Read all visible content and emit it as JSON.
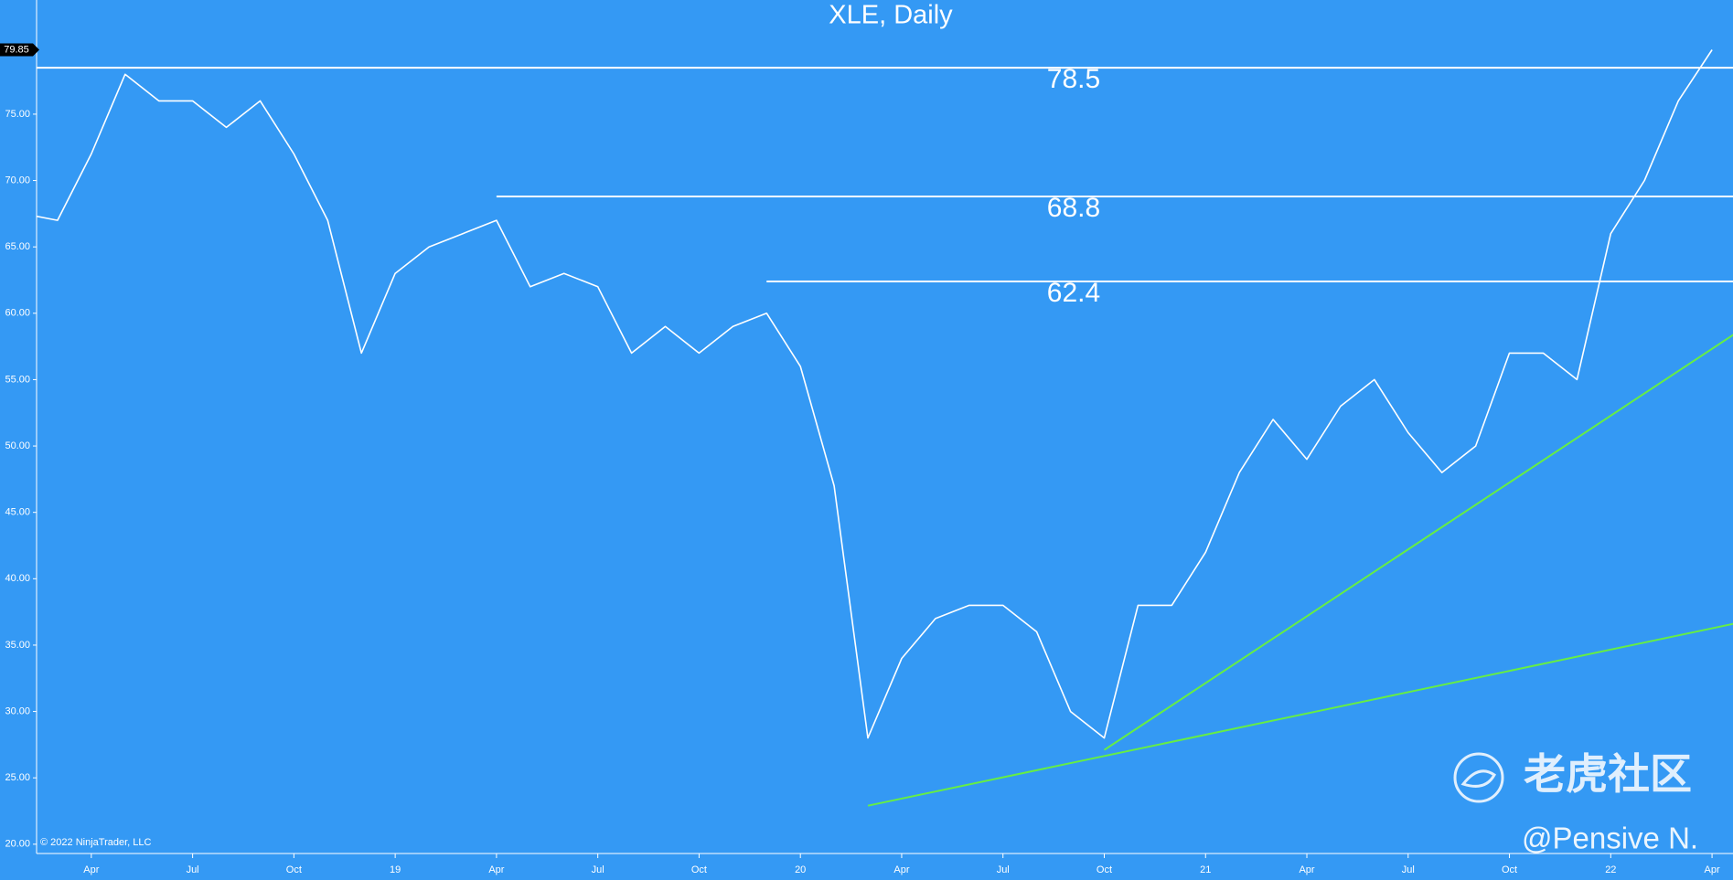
{
  "chart_data": {
    "type": "line",
    "title": "XLE, Daily",
    "x": [
      "2018-02",
      "2018-03",
      "2018-04",
      "2018-05",
      "2018-06",
      "2018-07",
      "2018-08",
      "2018-09",
      "2018-10",
      "2018-11",
      "2018-12",
      "2019-01",
      "2019-02",
      "2019-03",
      "2019-04",
      "2019-05",
      "2019-06",
      "2019-07",
      "2019-08",
      "2019-09",
      "2019-10",
      "2019-11",
      "2019-12",
      "2020-01",
      "2020-02",
      "2020-03",
      "2020-04",
      "2020-05",
      "2020-06",
      "2020-07",
      "2020-08",
      "2020-09",
      "2020-10",
      "2020-11",
      "2020-12",
      "2021-01",
      "2021-02",
      "2021-03",
      "2021-04",
      "2021-05",
      "2021-06",
      "2021-07",
      "2021-08",
      "2021-09",
      "2021-10",
      "2021-11",
      "2021-12",
      "2022-01",
      "2022-02",
      "2022-03",
      "2022-04"
    ],
    "series": [
      {
        "name": "XLE",
        "color": "#ffffff",
        "values": [
          67.5,
          67,
          72,
          78,
          76,
          76,
          74,
          76,
          72,
          67,
          57,
          63,
          65,
          66,
          67,
          62,
          63,
          62,
          57,
          59,
          57,
          59,
          60,
          56,
          47,
          28,
          34,
          37,
          38,
          38,
          36,
          30,
          28,
          38,
          38,
          42,
          48,
          52,
          49,
          53,
          55,
          51,
          48,
          50,
          57,
          57,
          55,
          66,
          70,
          76,
          79.85
        ]
      }
    ],
    "last_price": 79.85,
    "levels": [
      {
        "value": 78.5,
        "start": "2018-02"
      },
      {
        "value": 68.8,
        "start": "2019-04"
      },
      {
        "value": 62.4,
        "start": "2019-12"
      }
    ],
    "trend_lines": [
      {
        "x": [
          "2020-03",
          "2022-05"
        ],
        "values": [
          22.9,
          36.8
        ],
        "color": "#66ee44"
      },
      {
        "x": [
          "2020-10",
          "2022-05"
        ],
        "values": [
          27.1,
          59
        ],
        "color": "#66ee44"
      }
    ],
    "xlim": [
      "2018-02",
      "2022-05"
    ],
    "ylim": [
      19.3,
      83.6
    ],
    "xticks": [
      {
        "value": "2018-04",
        "label": "Apr"
      },
      {
        "value": "2018-07",
        "label": "Jul"
      },
      {
        "value": "2018-10",
        "label": "Oct"
      },
      {
        "value": "2019-01",
        "label": "19"
      },
      {
        "value": "2019-04",
        "label": "Apr"
      },
      {
        "value": "2019-07",
        "label": "Jul"
      },
      {
        "value": "2019-10",
        "label": "Oct"
      },
      {
        "value": "2020-01",
        "label": "20"
      },
      {
        "value": "2020-04",
        "label": "Apr"
      },
      {
        "value": "2020-07",
        "label": "Jul"
      },
      {
        "value": "2020-10",
        "label": "Oct"
      },
      {
        "value": "2021-01",
        "label": "21"
      },
      {
        "value": "2021-04",
        "label": "Apr"
      },
      {
        "value": "2021-07",
        "label": "Jul"
      },
      {
        "value": "2021-10",
        "label": "Oct"
      },
      {
        "value": "2022-01",
        "label": "22"
      },
      {
        "value": "2022-04",
        "label": "Apr"
      }
    ],
    "yticks": [
      {
        "value": 20,
        "label": "20.00"
      },
      {
        "value": 25,
        "label": "25.00"
      },
      {
        "value": 30,
        "label": "30.00"
      },
      {
        "value": 35,
        "label": "35.00"
      },
      {
        "value": 40,
        "label": "40.00"
      },
      {
        "value": 45,
        "label": "45.00"
      },
      {
        "value": 50,
        "label": "50.00"
      },
      {
        "value": 55,
        "label": "55.00"
      },
      {
        "value": 60,
        "label": "60.00"
      },
      {
        "value": 65,
        "label": "65.00"
      },
      {
        "value": 70,
        "label": "70.00"
      },
      {
        "value": 75,
        "label": "75.00"
      }
    ],
    "background": "#3499f4",
    "copyright": "© 2022 NinjaTrader, LLC",
    "watermark": "老虎社区",
    "author": "@Pensive N."
  }
}
